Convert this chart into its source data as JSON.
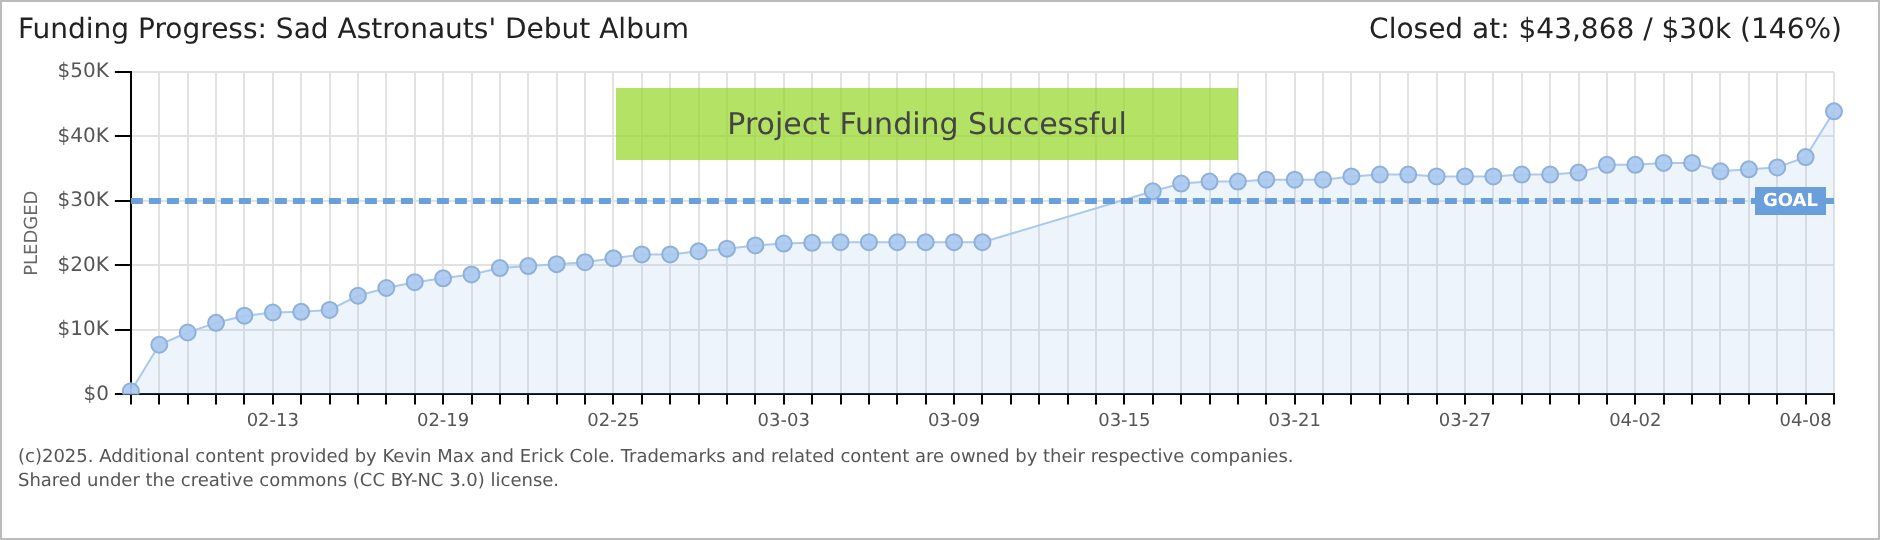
{
  "chart_data": {
    "type": "area",
    "title": "Funding Progress: Sad Astronauts' Debut Album",
    "subtitle": "Closed at: $43,868 / $30k (146%)",
    "ylabel": "PLEDGED",
    "categories": [
      null,
      null,
      null,
      null,
      null,
      "02-13",
      null,
      null,
      null,
      null,
      null,
      "02-19",
      null,
      null,
      null,
      null,
      null,
      "02-25",
      null,
      null,
      null,
      null,
      null,
      "03-03",
      null,
      null,
      null,
      null,
      null,
      "03-09",
      null,
      null,
      null,
      null,
      null,
      "03-15",
      null,
      null,
      null,
      null,
      null,
      "03-21",
      null,
      null,
      null,
      null,
      null,
      "03-27",
      null,
      null,
      null,
      null,
      null,
      "04-02",
      null,
      null,
      null,
      null,
      null,
      "04-08",
      null
    ],
    "series": [
      {
        "color": "#a9c9ef",
        "values": [
          0.5,
          7.7,
          9.6,
          11.1,
          12.2,
          12.7,
          12.8,
          13.1,
          15.3,
          16.5,
          17.4,
          18.0,
          18.6,
          19.6,
          19.9,
          20.2,
          20.5,
          21.1,
          21.7,
          21.7,
          22.2,
          22.6,
          23.1,
          23.4,
          23.5,
          23.6,
          23.6,
          23.6,
          23.6,
          23.6,
          23.6,
          null,
          null,
          null,
          null,
          null,
          31.5,
          32.7,
          33.0,
          33.0,
          33.3,
          33.3,
          33.3,
          33.8,
          34.1,
          34.1,
          33.8,
          33.8,
          33.8,
          34.1,
          34.1,
          34.4,
          35.6,
          35.6,
          35.9,
          35.9,
          34.6,
          34.9,
          35.2,
          36.8,
          43.9
        ]
      }
    ],
    "ylim": [
      0,
      50
    ],
    "yticks": [
      {
        "value": 0,
        "label": "$0"
      },
      {
        "value": 10,
        "label": "$10K"
      },
      {
        "value": 20,
        "label": "$20K"
      },
      {
        "value": 30,
        "label": "$30K"
      },
      {
        "value": 40,
        "label": "$40K"
      },
      {
        "value": 50,
        "label": "$50K"
      }
    ],
    "grid": true,
    "legend": false,
    "marker": "circle",
    "line_style": "solid",
    "ref_lines": [
      {
        "axis": "y",
        "value": 30,
        "label": "GOAL",
        "color": "#6a9fdc",
        "line_style": "dashed"
      }
    ],
    "annotations": [
      "Project Funding Successful",
      "(c)2025. Additional content provided by Kevin Max and Erick Cole. Trademarks and related content are owned by their respective companies.",
      "Shared under the creative commons (CC BY-NC 3.0) license."
    ]
  }
}
